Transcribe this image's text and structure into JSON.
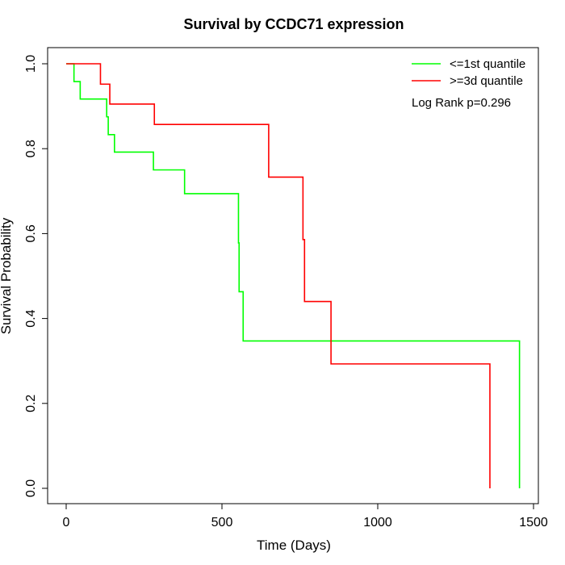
{
  "chart_data": {
    "type": "line",
    "title": "Survival by CCDC71 expression",
    "xlabel": "Time (Days)",
    "ylabel": "Survival Probability",
    "xlim": [
      0,
      1500
    ],
    "ylim": [
      0,
      1
    ],
    "x_ticks": [
      0,
      500,
      1000,
      1500
    ],
    "y_ticks": [
      0.0,
      0.2,
      0.4,
      0.6,
      0.8,
      1.0
    ],
    "x_tick_labels": [
      "0",
      "500",
      "1000",
      "1500"
    ],
    "y_tick_labels": [
      "0.0",
      "0.2",
      "0.4",
      "0.6",
      "0.8",
      "1.0"
    ],
    "legend_position": "top-right",
    "annotation": "Log Rank p=0.296",
    "series": [
      {
        "name": "<=1st quantile",
        "color": "#00FF00",
        "step": true,
        "x": [
          0,
          25,
          45,
          130,
          135,
          155,
          280,
          380,
          553,
          555,
          560,
          568,
          1455,
          1455
        ],
        "y": [
          1.0,
          0.958,
          0.917,
          0.875,
          0.833,
          0.792,
          0.75,
          0.694,
          0.578,
          0.463,
          0.463,
          0.347,
          0.347,
          0.0
        ]
      },
      {
        "name": ">=3d quantile",
        "color": "#FF0000",
        "step": true,
        "x": [
          0,
          110,
          140,
          283,
          650,
          760,
          765,
          850,
          1360,
          1360
        ],
        "y": [
          1.0,
          0.952,
          0.905,
          0.857,
          0.733,
          0.586,
          0.44,
          0.293,
          0.293,
          0.0
        ]
      }
    ]
  }
}
